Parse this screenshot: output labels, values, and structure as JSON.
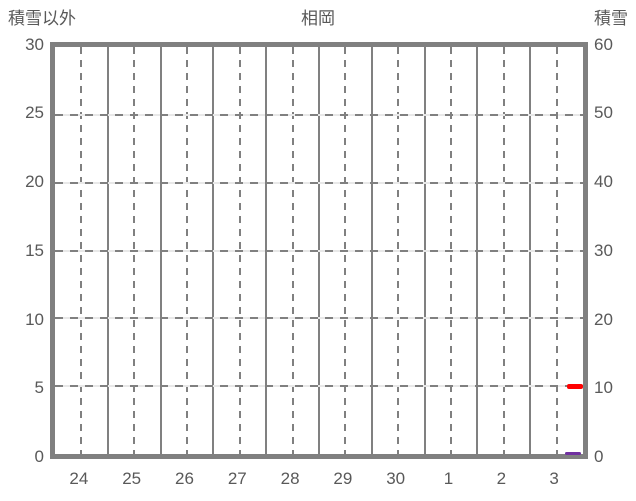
{
  "header": {
    "left_axis_title": "積雪以外",
    "title": "相岡",
    "right_axis_title": "積雪"
  },
  "colors": {
    "grid": "#808080",
    "grid_underlay": "#e8e8e8",
    "text": "#595959",
    "red_series": "#ff0000",
    "purple_series": "#7030a0",
    "background": "#ffffff"
  },
  "chart_data": {
    "type": "line",
    "title": "相岡",
    "left_axis": {
      "label": "積雪以外",
      "min": 0,
      "max": 30,
      "ticks": [
        "30",
        "25",
        "20",
        "15",
        "10",
        "5",
        "0"
      ]
    },
    "right_axis": {
      "label": "積雪",
      "min": 0,
      "max": 60,
      "ticks": [
        "60",
        "50",
        "40",
        "30",
        "20",
        "10",
        "0"
      ]
    },
    "categories": [
      "24",
      "25",
      "26",
      "27",
      "28",
      "29",
      "30",
      "1",
      "2",
      "3"
    ],
    "grid": {
      "vertical_solid_at_day_boundaries": true,
      "vertical_dashed_at_day_midpoints": true,
      "horizontal_dashed_every_left_tick": true
    },
    "series": [
      {
        "id": "red",
        "color": "#ff0000",
        "axis": "right",
        "segments": [
          {
            "category": "3",
            "x_start_day": 9.7,
            "x_end_day": 10.0,
            "value": 10,
            "thickness": 5
          }
        ]
      },
      {
        "id": "purple",
        "color": "#7030a0",
        "axis": "left",
        "segments": [
          {
            "category": "3",
            "x_start_day": 9.65,
            "x_end_day": 9.97,
            "value": 0,
            "thickness": 3
          }
        ]
      }
    ]
  }
}
